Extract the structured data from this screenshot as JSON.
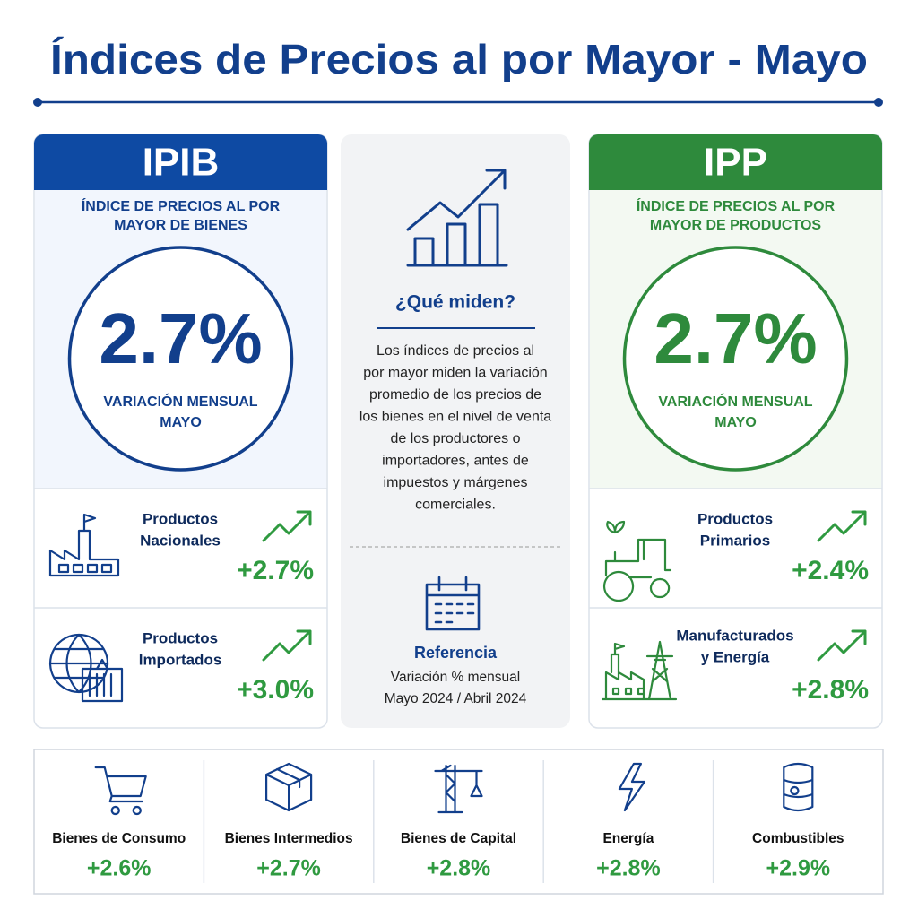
{
  "title": "Índices de Precios al por Mayor - Mayo",
  "cards": [
    {
      "code": "IPIB",
      "subtitle_lines": [
        "ÍNDICE DE PRECIOS AL POR",
        "MAYOR DE BIENES"
      ],
      "value": "2.7%",
      "caption_lines": [
        "VARIACIÓN MENSUAL",
        "MAYO"
      ],
      "items": [
        {
          "label_lines": [
            "Productos",
            "Nacionales"
          ],
          "value": "+2.7%"
        },
        {
          "label_lines": [
            "Productos",
            "Importados"
          ],
          "value": "+3.0%"
        }
      ]
    },
    {
      "code": "IPP",
      "subtitle_lines": [
        "ÍNDICE DE PRECIOS AL POR",
        "MAYOR DE PRODUCTOS"
      ],
      "value": "2.7%",
      "caption_lines": [
        "VARIACIÓN MENSUAL",
        "MAYO"
      ],
      "items": [
        {
          "label_lines": [
            "Productos",
            "Primarios"
          ],
          "value": "+2.4%"
        },
        {
          "label_lines": [
            "Manufacturados",
            "y Energía"
          ],
          "value": "+2.8%"
        }
      ]
    }
  ],
  "info": {
    "heading": "¿Qué miden?",
    "body_lines": [
      "Los índices de precios al",
      "por mayor miden la variación",
      "promedio de los precios de",
      "los bienes en el nivel de venta",
      "de los productores o",
      "importadores, antes de",
      "impuestos y márgenes",
      "comerciales."
    ],
    "reference": {
      "heading": "Referencia",
      "lines": [
        "Variación % mensual",
        "Mayo 2024 / Abril 2024"
      ]
    }
  },
  "categories": [
    {
      "label": "Bienes de Consumo",
      "value": "+2.6%"
    },
    {
      "label": "Bienes Intermedios",
      "value": "+2.7%"
    },
    {
      "label": "Bienes de Capital",
      "value": "+2.8%"
    },
    {
      "label": "Energía",
      "value": "+2.8%"
    },
    {
      "label": "Combustibles",
      "value": "+2.9%"
    }
  ]
}
